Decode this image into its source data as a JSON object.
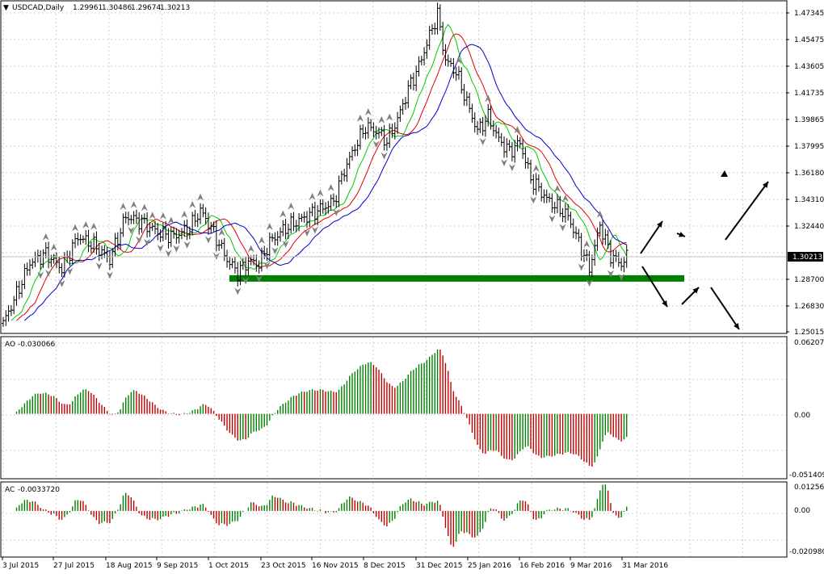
{
  "chart_data": {
    "type": "ohlc",
    "title": "USDCAD,Daily",
    "ohlc_readout": [
      "1.29961",
      "1.30486",
      "1.29674",
      "1.30213"
    ],
    "price_panel": {
      "y_ticks": [
        "1.47345",
        "1.45475",
        "1.43605",
        "1.41735",
        "1.39865",
        "1.37995",
        "1.36180",
        "1.34310",
        "1.32440",
        "1.28700",
        "1.26830",
        "1.25015"
      ],
      "current_price": "1.30213",
      "ylim": [
        1.2495,
        1.4786
      ],
      "support_level": 1.287,
      "colors": {
        "bars": "#000000",
        "ma_fast": "#00cc00",
        "ma_mid": "#e00000",
        "ma_slow": "#0000cc",
        "support": "#008000",
        "fractals": "#808080",
        "arrows": "#000000"
      }
    },
    "x_labels": [
      "3 Jul 2015",
      "27 Jul 2015",
      "18 Aug 2015",
      "9 Sep 2015",
      "1 Oct 2015",
      "23 Oct 2015",
      "16 Nov 2015",
      "8 Dec 2015",
      "31 Dec 2015",
      "25 Jan 2016",
      "16 Feb 2016",
      "9 Mar 2016",
      "31 Mar 2016"
    ],
    "ao_panel": {
      "label": "AO",
      "value": "-0.030066",
      "y_ticks": [
        "0.062072",
        "0.00",
        "-0.051409"
      ],
      "ylim": [
        -0.0545,
        0.065
      ],
      "colors": {
        "up": "#008000",
        "down": "#c00000"
      }
    },
    "ac_panel": {
      "label": "AC",
      "value": "-0.0033720",
      "y_ticks": [
        "0.012562",
        "0.00",
        "-0.020980"
      ],
      "ylim": [
        -0.0222,
        0.0138
      ],
      "colors": {
        "up": "#008000",
        "down": "#c00000"
      }
    },
    "price_waypoints": [
      [
        0,
        1.256
      ],
      [
        4,
        1.272
      ],
      [
        10,
        1.298
      ],
      [
        16,
        1.304
      ],
      [
        22,
        1.294
      ],
      [
        28,
        1.316
      ],
      [
        34,
        1.31
      ],
      [
        40,
        1.3
      ],
      [
        46,
        1.33
      ],
      [
        52,
        1.326
      ],
      [
        58,
        1.319
      ],
      [
        64,
        1.316
      ],
      [
        70,
        1.322
      ],
      [
        74,
        1.334
      ],
      [
        78,
        1.322
      ],
      [
        84,
        1.3
      ],
      [
        88,
        1.291
      ],
      [
        92,
        1.299
      ],
      [
        96,
        1.297
      ],
      [
        100,
        1.312
      ],
      [
        106,
        1.322
      ],
      [
        112,
        1.328
      ],
      [
        118,
        1.334
      ],
      [
        124,
        1.34
      ],
      [
        128,
        1.362
      ],
      [
        132,
        1.378
      ],
      [
        136,
        1.392
      ],
      [
        140,
        1.389
      ],
      [
        144,
        1.382
      ],
      [
        148,
        1.397
      ],
      [
        152,
        1.418
      ],
      [
        156,
        1.434
      ],
      [
        160,
        1.455
      ],
      [
        163,
        1.47
      ],
      [
        166,
        1.438
      ],
      [
        170,
        1.43
      ],
      [
        174,
        1.409
      ],
      [
        178,
        1.389
      ],
      [
        182,
        1.399
      ],
      [
        186,
        1.383
      ],
      [
        190,
        1.375
      ],
      [
        194,
        1.381
      ],
      [
        198,
        1.356
      ],
      [
        204,
        1.342
      ],
      [
        208,
        1.336
      ],
      [
        212,
        1.33
      ],
      [
        216,
        1.312
      ],
      [
        220,
        1.294
      ],
      [
        224,
        1.324
      ],
      [
        228,
        1.303
      ],
      [
        232,
        1.297
      ],
      [
        234,
        1.302
      ]
    ]
  }
}
